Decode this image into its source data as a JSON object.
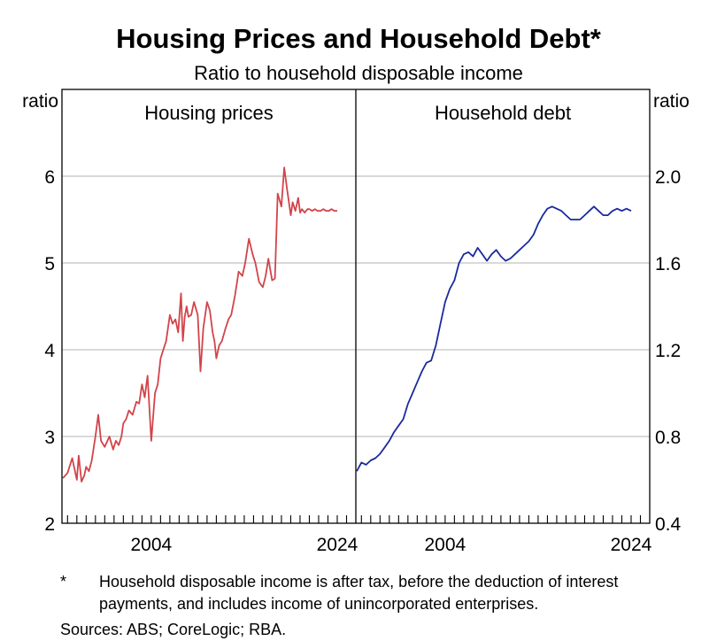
{
  "title": "Housing Prices and Household Debt*",
  "subtitle": "Ratio to household disposable income",
  "footnote": {
    "marker": "*",
    "text": "Household disposable income is after tax, before the deduction of interest payments, and includes income of unincorporated enterprises."
  },
  "sources": "Sources: ABS; CoreLogic; RBA.",
  "colors": {
    "housing": "#d2444a",
    "debt": "#1a2a9e",
    "grid": "#b3b3b3"
  },
  "chart_data": [
    {
      "type": "line",
      "title": "Housing prices",
      "ylabel": "ratio",
      "axis_side": "left",
      "xlim": [
        1994.4,
        2026.0
      ],
      "ylim": [
        2,
        7
      ],
      "yticks": [
        2,
        3,
        4,
        5,
        6
      ],
      "ytick_labels": [
        "2",
        "3",
        "4",
        "5",
        "6"
      ],
      "xtick_labels": [
        {
          "value": 2004,
          "label": "2004"
        },
        {
          "value": 2024,
          "label": "2024"
        }
      ],
      "grid": true,
      "series": [
        {
          "name": "Housing prices",
          "x": [
            1994.5,
            1995.0,
            1995.5,
            1996.0,
            1996.2,
            1996.5,
            1996.8,
            1997.0,
            1997.3,
            1997.6,
            1998.0,
            1998.3,
            1998.6,
            1999.0,
            1999.5,
            1999.9,
            2000.2,
            2000.5,
            2000.8,
            2001.0,
            2001.3,
            2001.6,
            2002.0,
            2002.4,
            2002.7,
            2003.0,
            2003.3,
            2003.6,
            2004.0,
            2004.4,
            2004.7,
            2005.0,
            2005.3,
            2005.6,
            2006.0,
            2006.3,
            2006.6,
            2006.9,
            2007.2,
            2007.4,
            2007.6,
            2007.8,
            2008.0,
            2008.3,
            2008.6,
            2009.0,
            2009.3,
            2009.6,
            2010.0,
            2010.3,
            2010.6,
            2010.8,
            2011.0,
            2011.3,
            2011.6,
            2012.0,
            2012.3,
            2012.6,
            2013.0,
            2013.4,
            2013.8,
            2014.1,
            2014.5,
            2014.9,
            2015.2,
            2015.6,
            2016.0,
            2016.3,
            2016.6,
            2017.0,
            2017.3,
            2017.6,
            2018.0,
            2018.3,
            2018.6,
            2019.0,
            2019.2,
            2019.5,
            2019.8,
            2020.0,
            2020.2,
            2020.5,
            2020.8,
            2021.0,
            2021.3,
            2021.6,
            2021.9,
            2022.2,
            2022.5,
            2022.8,
            2023.1,
            2023.4,
            2023.7,
            2024.0
          ],
          "y": [
            2.52,
            2.58,
            2.75,
            2.5,
            2.78,
            2.48,
            2.55,
            2.65,
            2.6,
            2.72,
            3.0,
            3.25,
            2.95,
            2.88,
            3.0,
            2.85,
            2.95,
            2.9,
            3.0,
            3.15,
            3.2,
            3.3,
            3.25,
            3.4,
            3.38,
            3.6,
            3.45,
            3.7,
            2.95,
            3.5,
            3.6,
            3.9,
            4.0,
            4.1,
            4.4,
            4.3,
            4.35,
            4.2,
            4.65,
            4.1,
            4.38,
            4.5,
            4.38,
            4.4,
            4.55,
            4.4,
            3.75,
            4.25,
            4.55,
            4.45,
            4.2,
            4.1,
            3.9,
            4.05,
            4.1,
            4.25,
            4.35,
            4.4,
            4.62,
            4.9,
            4.85,
            5.0,
            5.28,
            5.1,
            5.0,
            4.78,
            4.72,
            4.85,
            5.05,
            4.8,
            4.82,
            5.8,
            5.65,
            6.1,
            5.85,
            5.55,
            5.7,
            5.6,
            5.75,
            5.58,
            5.62,
            5.58,
            5.62,
            5.62,
            5.6,
            5.62,
            5.6,
            5.6,
            5.62,
            5.6,
            5.6,
            5.62,
            5.6,
            5.6
          ]
        }
      ]
    },
    {
      "type": "line",
      "title": "Household debt",
      "ylabel": "ratio",
      "axis_side": "right",
      "xlim": [
        1994.4,
        2026.0
      ],
      "ylim": [
        0.4,
        2.4
      ],
      "yticks": [
        0.4,
        0.8,
        1.2,
        1.6,
        2.0
      ],
      "ytick_labels": [
        "0.4",
        "0.8",
        "1.2",
        "1.6",
        "2.0"
      ],
      "xtick_labels": [
        {
          "value": 2004,
          "label": "2004"
        },
        {
          "value": 2024,
          "label": "2024"
        }
      ],
      "grid": true,
      "series": [
        {
          "name": "Household debt",
          "x": [
            1994.5,
            1995.0,
            1995.5,
            1996.0,
            1996.5,
            1997.0,
            1997.5,
            1998.0,
            1998.5,
            1999.0,
            1999.5,
            2000.0,
            2000.5,
            2001.0,
            2001.5,
            2002.0,
            2002.5,
            2003.0,
            2003.5,
            2004.0,
            2004.5,
            2005.0,
            2005.5,
            2006.0,
            2006.5,
            2007.0,
            2007.5,
            2008.0,
            2008.5,
            2009.0,
            2009.5,
            2010.0,
            2010.5,
            2011.0,
            2011.5,
            2012.0,
            2012.5,
            2013.0,
            2013.5,
            2014.0,
            2014.5,
            2015.0,
            2015.5,
            2016.0,
            2016.5,
            2017.0,
            2017.5,
            2018.0,
            2018.5,
            2019.0,
            2019.5,
            2020.0,
            2020.5,
            2021.0,
            2021.5,
            2022.0,
            2022.5,
            2023.0,
            2023.5,
            2024.0
          ],
          "y": [
            0.64,
            0.68,
            0.67,
            0.69,
            0.7,
            0.72,
            0.75,
            0.78,
            0.82,
            0.85,
            0.88,
            0.95,
            1.0,
            1.05,
            1.1,
            1.14,
            1.15,
            1.22,
            1.32,
            1.42,
            1.48,
            1.52,
            1.6,
            1.64,
            1.65,
            1.63,
            1.67,
            1.64,
            1.61,
            1.64,
            1.66,
            1.63,
            1.61,
            1.62,
            1.64,
            1.66,
            1.68,
            1.7,
            1.73,
            1.78,
            1.82,
            1.85,
            1.86,
            1.85,
            1.84,
            1.82,
            1.8,
            1.8,
            1.8,
            1.82,
            1.84,
            1.86,
            1.84,
            1.82,
            1.82,
            1.84,
            1.85,
            1.84,
            1.85,
            1.84
          ]
        }
      ]
    }
  ]
}
